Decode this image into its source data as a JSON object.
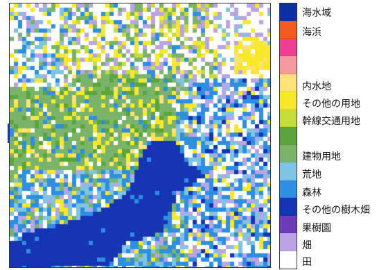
{
  "legend": {
    "classes": [
      {
        "label": "海水域",
        "color": "#0b2fa6"
      },
      {
        "label": "海浜",
        "color": "#f25a22"
      },
      {
        "label": "",
        "color": "#ee3f93"
      },
      {
        "label": "",
        "color": "#f59a9e"
      },
      {
        "label": "内水地",
        "color": "#fde27a"
      },
      {
        "label": "その他の用地",
        "color": "#f8e82a"
      },
      {
        "label": "幹線交通用地",
        "color": "#c6de3a"
      },
      {
        "label": "",
        "color": "#5aa63c"
      },
      {
        "label": "建物用地",
        "color": "#79b46a"
      },
      {
        "label": "荒地",
        "color": "#7fc4e0"
      },
      {
        "label": "森林",
        "color": "#2e8ee3"
      },
      {
        "label": "その他の樹木畑",
        "color": "#1635b5"
      },
      {
        "label": "果樹園",
        "color": "#6a3cb8"
      },
      {
        "label": "畑",
        "color": "#b9a4e6"
      },
      {
        "label": "田",
        "color": "#ffffff"
      }
    ]
  }
}
